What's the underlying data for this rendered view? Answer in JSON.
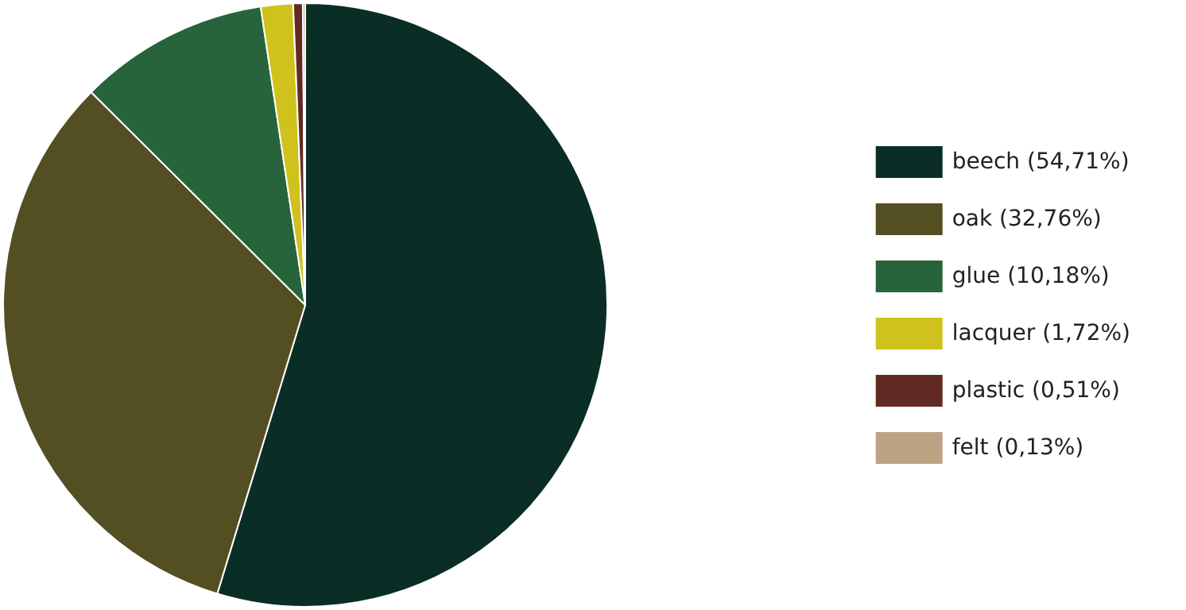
{
  "chart_data": {
    "type": "pie",
    "categories": [
      "beech (54,71%)",
      "oak (32,76%)",
      "glue (10,18%)",
      "lacquer (1,72%)",
      "plastic (0,51%)",
      "felt (0,13%)"
    ],
    "values": [
      54.71,
      32.76,
      10.18,
      1.72,
      0.51,
      0.13
    ],
    "colors": [
      "#0a2e26",
      "#544f22",
      "#27643c",
      "#d0c21c",
      "#612a22",
      "#bda283"
    ],
    "legend": "right"
  }
}
